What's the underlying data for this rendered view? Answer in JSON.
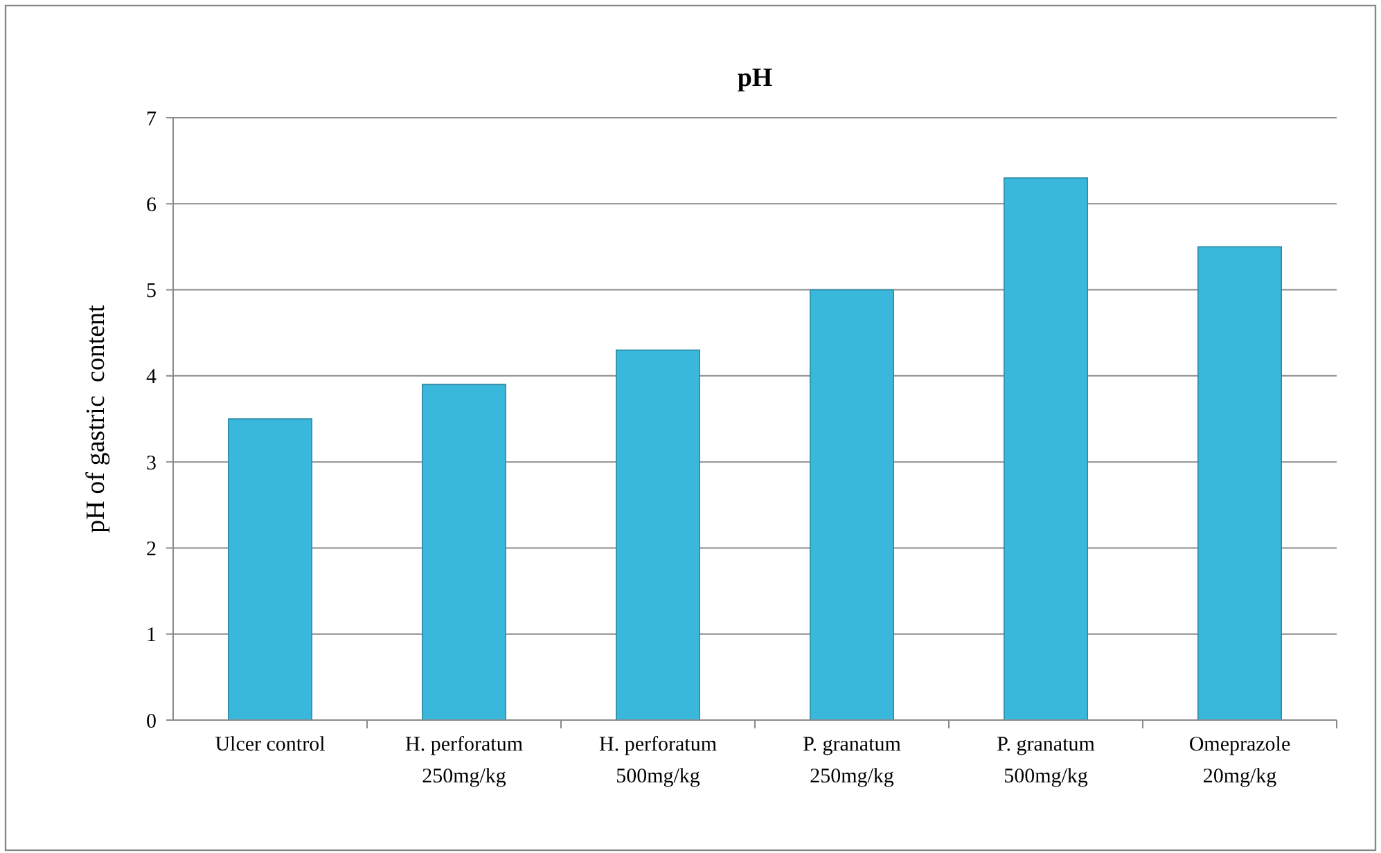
{
  "chart_data": {
    "type": "bar",
    "title": "pH",
    "ylabel": "pH of gastric  content",
    "categories": [
      "Ulcer control",
      "H. perforatum 250mg/kg",
      "H. perforatum 500mg/kg",
      "P. granatum 250mg/kg",
      "P. granatum 500mg/kg",
      "Omeprazole 20mg/kg"
    ],
    "values": [
      3.5,
      3.9,
      4.3,
      5.0,
      6.3,
      5.5
    ],
    "color": "#3ab8dc",
    "ylim": [
      0,
      7
    ],
    "yticks": [
      0,
      1,
      2,
      3,
      4,
      5,
      6,
      7
    ],
    "grid": "y"
  }
}
